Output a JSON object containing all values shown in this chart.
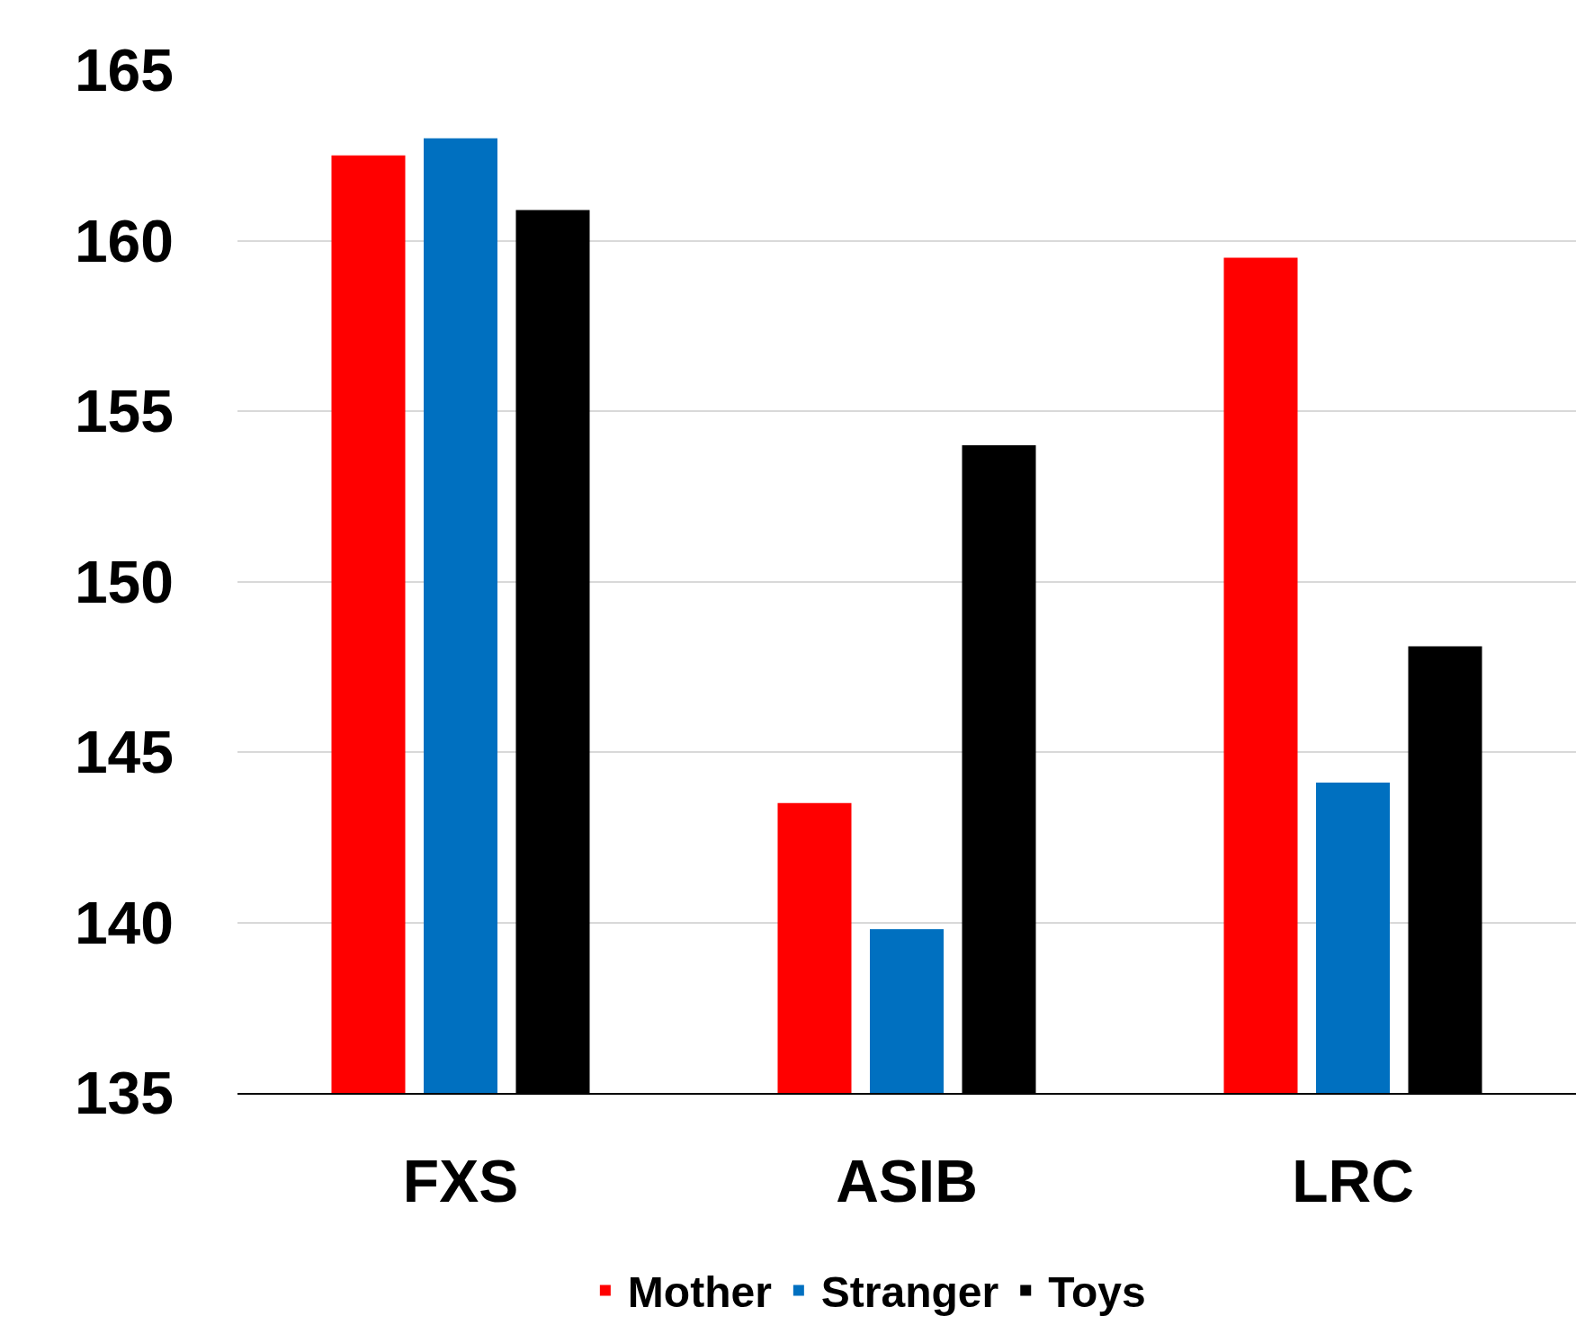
{
  "chart_data": {
    "type": "bar",
    "categories": [
      "FXS",
      "ASIB",
      "LRC"
    ],
    "series": [
      {
        "name": "Mother",
        "color": "#ff0000",
        "values": [
          162.5,
          143.5,
          159.5
        ]
      },
      {
        "name": "Stranger",
        "color": "#0070c0",
        "values": [
          163.0,
          139.8,
          144.1
        ]
      },
      {
        "name": "Toys",
        "color": "#000000",
        "values": [
          160.9,
          154.0,
          148.1
        ]
      }
    ],
    "ylim": [
      135,
      165
    ],
    "yticks": [
      135,
      140,
      145,
      150,
      155,
      160,
      165
    ],
    "grid": "y",
    "legend": "bottom"
  }
}
